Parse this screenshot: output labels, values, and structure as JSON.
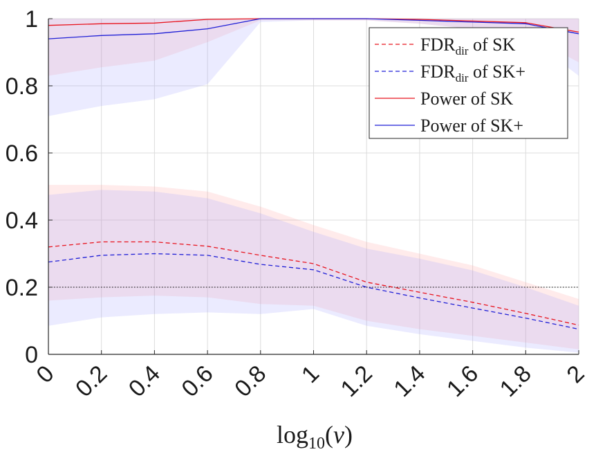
{
  "chart_data": {
    "type": "line",
    "title": "",
    "xlabel": "log10(ν)",
    "xlabel_parts": {
      "base": "log",
      "subscript": "10",
      "open": "(",
      "var": "ν",
      "close": ")"
    },
    "ylabel": "",
    "xlim": [
      0,
      2
    ],
    "ylim": [
      0,
      1
    ],
    "grid": true,
    "legend_position": "top-right",
    "x": [
      0,
      0.2,
      0.4,
      0.6,
      0.8,
      1,
      1.2,
      1.4,
      1.6,
      1.8,
      2
    ],
    "x_tick_labels": [
      "0",
      "0.2",
      "0.4",
      "0.6",
      "0.8",
      "1",
      "1.2",
      "1.4",
      "1.6",
      "1.8",
      "2"
    ],
    "y_ticks": [
      0,
      0.2,
      0.4,
      0.6,
      0.8,
      1
    ],
    "y_tick_labels": [
      "0",
      "0.2",
      "0.4",
      "0.6",
      "0.8",
      "1"
    ],
    "reference_line": {
      "y": 0.2,
      "style": "dotted",
      "color": "#000000"
    },
    "series": [
      {
        "name": "FDR_dir of SK",
        "label_main": "FDR",
        "label_sub": "dir",
        "label_rest": " of SK",
        "color": "#e8141e",
        "dash": "dashed",
        "values": [
          0.32,
          0.335,
          0.335,
          0.322,
          0.295,
          0.27,
          0.215,
          0.185,
          0.155,
          0.122,
          0.087
        ],
        "band_lower": [
          0.16,
          0.17,
          0.175,
          0.17,
          0.15,
          0.145,
          0.1,
          0.075,
          0.055,
          0.035,
          0.015
        ],
        "band_upper": [
          0.505,
          0.505,
          0.5,
          0.485,
          0.44,
          0.385,
          0.335,
          0.3,
          0.265,
          0.215,
          0.165
        ]
      },
      {
        "name": "FDR_dir of SK+",
        "label_main": "FDR",
        "label_sub": "dir",
        "label_rest": " of SK+",
        "color": "#1f1fd6",
        "dash": "dashed",
        "values": [
          0.275,
          0.295,
          0.3,
          0.295,
          0.268,
          0.252,
          0.2,
          0.168,
          0.138,
          0.108,
          0.075
        ],
        "band_lower": [
          0.085,
          0.11,
          0.12,
          0.125,
          0.12,
          0.135,
          0.085,
          0.06,
          0.04,
          0.02,
          0.005
        ],
        "band_upper": [
          0.475,
          0.49,
          0.485,
          0.465,
          0.42,
          0.365,
          0.315,
          0.285,
          0.25,
          0.2,
          0.145
        ]
      },
      {
        "name": "Power of SK",
        "label_main": "Power of SK",
        "label_sub": "",
        "label_rest": "",
        "color": "#e8141e",
        "dash": "solid",
        "values": [
          0.98,
          0.985,
          0.987,
          0.998,
          1.0,
          1.0,
          1.0,
          0.998,
          0.993,
          0.988,
          0.96
        ],
        "band_lower": [
          0.83,
          0.855,
          0.875,
          0.93,
          0.995,
          0.995,
          0.995,
          0.985,
          0.97,
          0.955,
          0.87
        ],
        "band_upper": [
          1.0,
          1.0,
          1.0,
          1.0,
          1.0,
          1.0,
          1.0,
          1.0,
          1.0,
          1.0,
          1.0
        ]
      },
      {
        "name": "Power of SK+",
        "label_main": "Power of SK+",
        "label_sub": "",
        "label_rest": "",
        "color": "#1f1fd6",
        "dash": "solid",
        "values": [
          0.94,
          0.95,
          0.955,
          0.97,
          1.0,
          1.0,
          1.0,
          0.995,
          0.99,
          0.985,
          0.955
        ],
        "band_lower": [
          0.71,
          0.74,
          0.76,
          0.805,
          0.99,
          0.995,
          0.995,
          0.985,
          0.97,
          0.95,
          0.83
        ],
        "band_upper": [
          1.0,
          1.0,
          1.0,
          1.0,
          1.0,
          1.0,
          1.0,
          1.0,
          1.0,
          1.0,
          1.0
        ]
      }
    ],
    "band_fill": {
      "red": "#ff9999",
      "blue": "#9999ff",
      "opacity": 0.2
    }
  }
}
